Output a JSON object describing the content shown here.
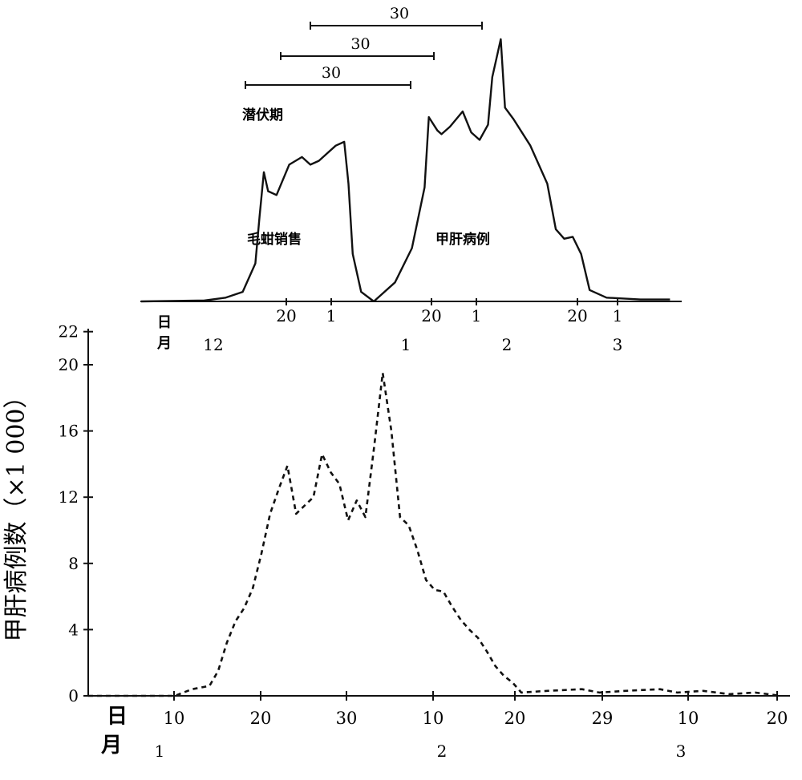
{
  "chart_data": [
    {
      "type": "line",
      "title": "",
      "xlabel": "",
      "ylabel": "",
      "x_row_labels": [
        "日",
        "月"
      ],
      "x_day_ticks": [
        "20",
        "1",
        "20",
        "1",
        "20",
        "1"
      ],
      "x_month_ticks": [
        "12",
        "1",
        "2",
        "3"
      ],
      "intervals": [
        {
          "label": "30",
          "days": 30
        },
        {
          "label": "30",
          "days": 30
        },
        {
          "label": "30",
          "days": 30
        }
      ],
      "annotations": [
        "潜伏期",
        "毛蚶销售",
        "甲肝病例"
      ],
      "series": [
        {
          "name": "毛蚶销售",
          "note": "relative level, no y scale printed",
          "points": [
            [
              0,
              0
            ],
            [
              15,
              0.5
            ],
            [
              20,
              2
            ],
            [
              24,
              5
            ],
            [
              27,
              20
            ],
            [
              28,
              45
            ],
            [
              29,
              68
            ],
            [
              30,
              58
            ],
            [
              32,
              56
            ],
            [
              35,
              72
            ],
            [
              38,
              76
            ],
            [
              40,
              72
            ],
            [
              42,
              74
            ],
            [
              44,
              78
            ],
            [
              46,
              82
            ],
            [
              48,
              84
            ],
            [
              49,
              62
            ],
            [
              50,
              25
            ],
            [
              52,
              5
            ],
            [
              55,
              0
            ]
          ]
        },
        {
          "name": "甲肝病例",
          "note": "relative level, no y scale printed",
          "points": [
            [
              55,
              0
            ],
            [
              57,
              4
            ],
            [
              60,
              10
            ],
            [
              64,
              28
            ],
            [
              67,
              60
            ],
            [
              68,
              97
            ],
            [
              70,
              90
            ],
            [
              71,
              88
            ],
            [
              73,
              92
            ],
            [
              76,
              100
            ],
            [
              78,
              89
            ],
            [
              80,
              85
            ],
            [
              82,
              93
            ],
            [
              83,
              118
            ],
            [
              84,
              128
            ],
            [
              85,
              138
            ],
            [
              86,
              102
            ],
            [
              88,
              96
            ],
            [
              92,
              82
            ],
            [
              96,
              62
            ],
            [
              98,
              38
            ],
            [
              100,
              33
            ],
            [
              102,
              34
            ],
            [
              104,
              25
            ],
            [
              106,
              6
            ],
            [
              110,
              2
            ],
            [
              118,
              1
            ],
            [
              125,
              1
            ]
          ]
        }
      ]
    },
    {
      "type": "line",
      "title": "",
      "xlabel": "",
      "ylabel": "甲肝病例数（×1 000）",
      "ylim": [
        0,
        22
      ],
      "y_ticks": [
        "0",
        "4",
        "8",
        "12",
        "16",
        "20",
        "22"
      ],
      "x_row_labels": [
        "日",
        "月"
      ],
      "x_day_ticks": [
        "10",
        "20",
        "30",
        "10",
        "20",
        "29",
        "10",
        "20"
      ],
      "x_month_ticks": [
        "1",
        "2",
        "3"
      ],
      "series": [
        {
          "name": "甲肝病例数",
          "style": "dashed",
          "points": [
            [
              0,
              0
            ],
            [
              10,
              0
            ],
            [
              12,
              0.4
            ],
            [
              14,
              0.6
            ],
            [
              15,
              1.5
            ],
            [
              16,
              3.2
            ],
            [
              17,
              4.5
            ],
            [
              18,
              5.3
            ],
            [
              19,
              6.5
            ],
            [
              20,
              8.6
            ],
            [
              21,
              11
            ],
            [
              22,
              12.5
            ],
            [
              23,
              13.9
            ],
            [
              24,
              11
            ],
            [
              25,
              11.5
            ],
            [
              26,
              12
            ],
            [
              27,
              14.6
            ],
            [
              28,
              13.5
            ],
            [
              29,
              12.8
            ],
            [
              30,
              10.6
            ],
            [
              31,
              11.8
            ],
            [
              32,
              10.8
            ],
            [
              33,
              15
            ],
            [
              34,
              19.5
            ],
            [
              35,
              16
            ],
            [
              36,
              10.8
            ],
            [
              37,
              10.3
            ],
            [
              38,
              8.8
            ],
            [
              39,
              7
            ],
            [
              40,
              6.4
            ],
            [
              41,
              6.3
            ],
            [
              42,
              5.4
            ],
            [
              43,
              4.6
            ],
            [
              44,
              4
            ],
            [
              45,
              3.5
            ],
            [
              46,
              2.7
            ],
            [
              47,
              1.8
            ],
            [
              48,
              1.2
            ],
            [
              49,
              0.8
            ],
            [
              50,
              0.2
            ],
            [
              53,
              0.3
            ],
            [
              57,
              0.4
            ],
            [
              59,
              0.2
            ],
            [
              62,
              0.3
            ],
            [
              66,
              0.4
            ],
            [
              68,
              0.2
            ],
            [
              71,
              0.3
            ],
            [
              74,
              0.1
            ],
            [
              77,
              0.2
            ],
            [
              80,
              0
            ]
          ]
        }
      ]
    }
  ]
}
